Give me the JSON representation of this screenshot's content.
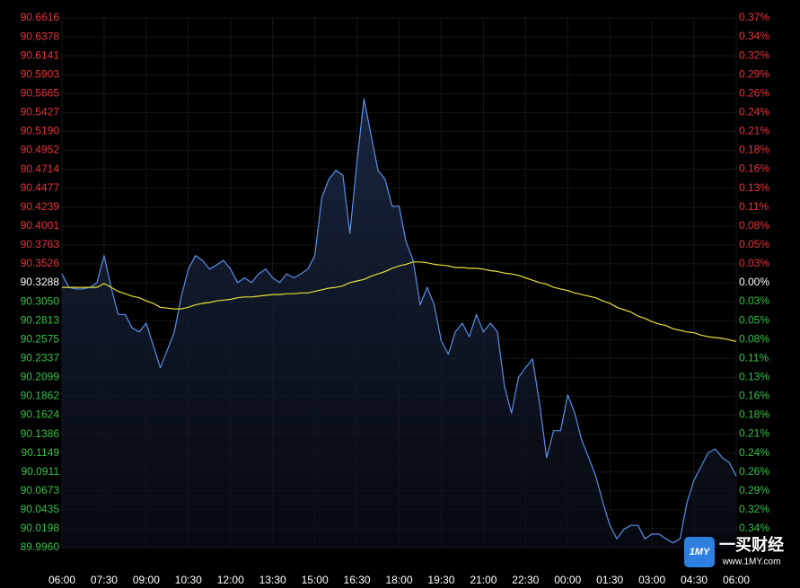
{
  "chart_data": {
    "type": "line",
    "categories": [
      "06:00",
      null,
      null,
      null,
      null,
      null,
      "07:30",
      null,
      null,
      null,
      null,
      null,
      "09:00",
      null,
      null,
      null,
      null,
      null,
      "10:30",
      null,
      null,
      null,
      null,
      null,
      "12:00",
      null,
      null,
      null,
      null,
      null,
      "13:30",
      null,
      null,
      null,
      null,
      null,
      "15:00",
      null,
      null,
      null,
      null,
      null,
      "16:30",
      null,
      null,
      null,
      null,
      null,
      "18:00",
      null,
      null,
      null,
      null,
      null,
      "19:30",
      null,
      null,
      null,
      null,
      null,
      "21:00",
      null,
      null,
      null,
      null,
      null,
      "22:30",
      null,
      null,
      null,
      null,
      null,
      "00:00",
      null,
      null,
      null,
      null,
      null,
      "01:30",
      null,
      null,
      null,
      null,
      null,
      "03:00",
      null,
      null,
      null,
      null,
      null,
      "04:30",
      null,
      null,
      null,
      null,
      null,
      "06:00"
    ],
    "series": [
      {
        "color": "#5b8fe8",
        "area": true,
        "values": [
          90.34,
          90.323,
          90.321,
          90.321,
          90.323,
          90.329,
          90.363,
          90.323,
          90.289,
          90.289,
          90.272,
          90.267,
          90.278,
          90.25,
          90.222,
          90.244,
          90.267,
          90.312,
          90.346,
          90.363,
          90.357,
          90.346,
          90.351,
          90.357,
          90.346,
          90.329,
          90.335,
          90.329,
          90.34,
          90.346,
          90.335,
          90.329,
          90.34,
          90.335,
          90.34,
          90.346,
          90.363,
          90.436,
          90.459,
          90.47,
          90.464,
          90.391,
          90.481,
          90.56,
          90.515,
          90.47,
          90.459,
          90.425,
          90.425,
          90.38,
          90.357,
          90.301,
          90.323,
          90.301,
          90.256,
          90.239,
          90.267,
          90.278,
          90.261,
          90.289,
          90.267,
          90.278,
          90.267,
          90.199,
          90.165,
          90.21,
          90.222,
          90.233,
          90.177,
          90.109,
          90.143,
          90.143,
          90.188,
          90.165,
          90.131,
          90.109,
          90.086,
          90.053,
          90.024,
          90.007,
          90.019,
          90.024,
          90.024,
          90.007,
          90.013,
          90.013,
          90.007,
          90.002,
          90.007,
          90.053,
          90.081,
          90.098,
          90.115,
          90.12,
          90.109,
          90.103,
          90.086
        ]
      },
      {
        "color": "#e6e03a",
        "area": false,
        "values": [
          90.323,
          90.323,
          90.323,
          90.323,
          90.323,
          90.323,
          90.328,
          90.323,
          90.318,
          90.315,
          90.312,
          90.31,
          90.306,
          90.303,
          90.298,
          90.297,
          90.296,
          90.296,
          90.298,
          90.301,
          90.303,
          90.304,
          90.306,
          90.307,
          90.308,
          90.31,
          90.311,
          90.311,
          90.312,
          90.313,
          90.314,
          90.314,
          90.315,
          90.315,
          90.316,
          90.316,
          90.318,
          90.32,
          90.322,
          90.323,
          90.325,
          90.329,
          90.331,
          90.333,
          90.337,
          90.34,
          90.343,
          90.347,
          90.35,
          90.352,
          90.355,
          90.355,
          90.354,
          90.352,
          90.351,
          90.35,
          90.348,
          90.348,
          90.347,
          90.347,
          90.346,
          90.344,
          90.343,
          90.341,
          90.34,
          90.338,
          90.335,
          90.332,
          90.329,
          90.327,
          90.323,
          90.321,
          90.319,
          90.316,
          90.314,
          90.312,
          90.31,
          90.306,
          90.303,
          90.298,
          90.295,
          90.292,
          90.287,
          90.284,
          90.28,
          90.277,
          90.275,
          90.271,
          90.269,
          90.267,
          90.266,
          90.263,
          90.261,
          90.26,
          90.259,
          90.257,
          90.255
        ]
      }
    ],
    "ylim": [
      89.996,
      90.6616
    ],
    "yticks": [
      90.6616,
      90.6378,
      90.6141,
      90.5903,
      90.5665,
      90.5427,
      {
        "value": 90.519,
        "label": "90.5190"
      },
      90.4952,
      90.4714,
      90.4477,
      90.4239,
      90.4001,
      90.3763,
      90.3526,
      90.3288,
      {
        "value": 90.305,
        "label": "90.3050"
      },
      90.2813,
      90.2575,
      90.2337,
      90.2099,
      90.1862,
      90.1624,
      90.1386,
      90.1149,
      90.0911,
      90.0673,
      90.0435,
      90.0198,
      {
        "value": 89.996,
        "label": "89.9960"
      }
    ],
    "y2lim": [
      -0.3684,
      0.3684
    ],
    "y2ticks": [
      {
        "value": 0.3684,
        "label": "0.37%"
      },
      {
        "value": 0.3421,
        "label": "0.34%"
      },
      {
        "value": 0.3158,
        "label": "0.32%"
      },
      {
        "value": 0.2895,
        "label": "0.29%"
      },
      {
        "value": 0.2631,
        "label": "0.26%"
      },
      {
        "value": 0.2368,
        "label": "0.24%"
      },
      {
        "value": 0.2105,
        "label": "0.21%"
      },
      {
        "value": 0.1842,
        "label": "0.18%"
      },
      {
        "value": 0.1579,
        "label": "0.16%"
      },
      {
        "value": 0.1316,
        "label": "0.13%"
      },
      {
        "value": 0.1053,
        "label": "0.11%"
      },
      {
        "value": 0.0789,
        "label": "0.08%"
      },
      {
        "value": 0.0526,
        "label": "0.05%"
      },
      {
        "value": 0.0263,
        "label": "0.03%"
      },
      {
        "value": 0,
        "label": "0.00%"
      },
      {
        "value": -0.0263,
        "label": "0.03%"
      },
      {
        "value": -0.0526,
        "label": "0.05%"
      },
      {
        "value": -0.0789,
        "label": "0.08%"
      },
      {
        "value": -0.1053,
        "label": "0.11%"
      },
      {
        "value": -0.1316,
        "label": "0.13%"
      },
      {
        "value": -0.1579,
        "label": "0.16%"
      },
      {
        "value": -0.1842,
        "label": "0.18%"
      },
      {
        "value": -0.2105,
        "label": "0.21%"
      },
      {
        "value": -0.2368,
        "label": "0.24%"
      },
      {
        "value": -0.2631,
        "label": "0.26%"
      },
      {
        "value": -0.2895,
        "label": "0.29%"
      },
      {
        "value": -0.3158,
        "label": "0.32%"
      },
      {
        "value": -0.3421,
        "label": "0.34%"
      }
    ],
    "grid": true,
    "up_color": "#e8333d",
    "down_color": "#35c24a",
    "flat_color": "#ffffff"
  },
  "watermark": {
    "icon": "1MY",
    "title": "一买财经",
    "url": "www.1MY.com"
  }
}
